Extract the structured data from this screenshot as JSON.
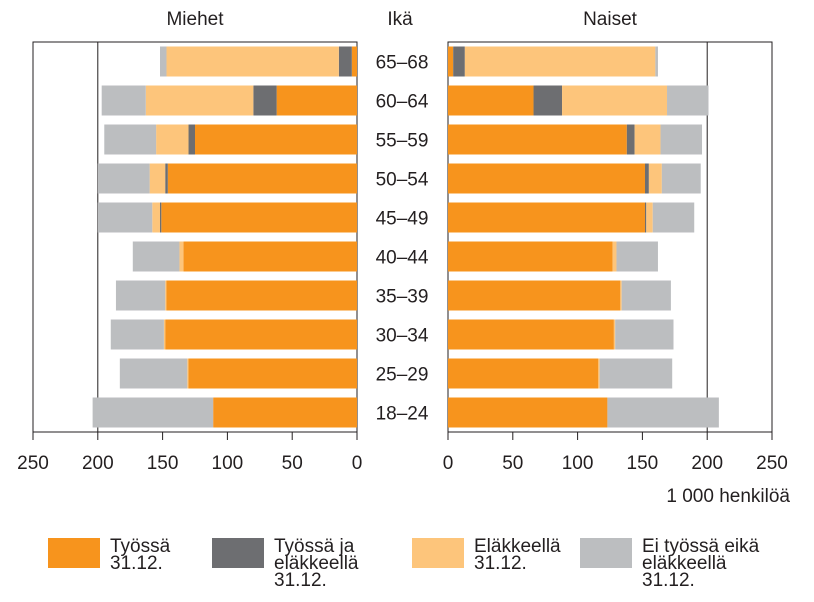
{
  "chart_data": {
    "type": "bar",
    "category_label": "Ikä",
    "categories": [
      "65–68",
      "60–64",
      "55–59",
      "50–54",
      "45–49",
      "40–44",
      "35–39",
      "30–34",
      "25–29",
      "18–24"
    ],
    "xlabel": "1 000 henkilöä",
    "series": [
      {
        "name": "Työssä 31.12.",
        "color": "#f7941d"
      },
      {
        "name": "Työssä ja eläkkeellä 31.12.",
        "color": "#6d6e71"
      },
      {
        "name": "Eläkkeellä 31.12.",
        "color": "#fdc57b"
      },
      {
        "name": "Ei työssä eikä eläkkeellä 31.12.",
        "color": "#bcbec0"
      }
    ],
    "panels": [
      {
        "title": "Miehet",
        "reversed": true,
        "xlim": [
          0,
          250
        ],
        "xticks": [
          0,
          50,
          100,
          150,
          200,
          250
        ],
        "gridlines": [
          200
        ],
        "values": [
          [
            4,
            62,
            125,
            146,
            151,
            134,
            147,
            148,
            130,
            111
          ],
          [
            10,
            18,
            5,
            2,
            1,
            0,
            0,
            0,
            0,
            0
          ],
          [
            133,
            83,
            25,
            12,
            6,
            3,
            1,
            1,
            1,
            0
          ],
          [
            5,
            34,
            40,
            40,
            42,
            36,
            38,
            41,
            52,
            93
          ]
        ]
      },
      {
        "title": "Naiset",
        "reversed": false,
        "xlim": [
          0,
          250
        ],
        "xticks": [
          0,
          50,
          100,
          150,
          200,
          250
        ],
        "gridlines": [
          200
        ],
        "values": [
          [
            4,
            66,
            138,
            152,
            152,
            127,
            133,
            128,
            116,
            123
          ],
          [
            9,
            22,
            6,
            3,
            1,
            0,
            0,
            0,
            0,
            0
          ],
          [
            147,
            81,
            20,
            10,
            5,
            3,
            1,
            1,
            1,
            0
          ],
          [
            2,
            32,
            32,
            30,
            32,
            32,
            38,
            45,
            56,
            86
          ]
        ]
      }
    ]
  }
}
